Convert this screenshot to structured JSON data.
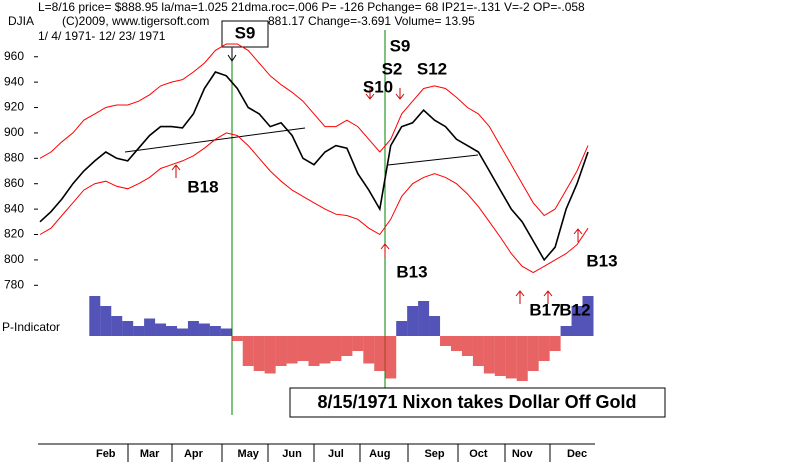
{
  "chart_data": [
    {
      "type": "line",
      "title": "DJIA",
      "header": [
        "L=8/16  price= $888.95  la/ma=1.025 21dma.roc=.006 P= -126 Pchange=  68 IP21=-.131 V=-2 OP=-.058",
        "(C)2009, www.tigersoft.com",
        "881.17  Change=-3.691 Volume= 13.95"
      ],
      "subtitle": "1/ 4/ 1971- 12/ 23/ 1971",
      "caption": "8/15/1971 Nixon takes Dollar Off Gold",
      "annotations": [
        "S9",
        "S9",
        "S2",
        "S12",
        "S10",
        "B18",
        "B13",
        "B13",
        "B17",
        "B12"
      ],
      "categories": [
        null,
        null,
        null,
        null,
        null,
        null,
        "Feb",
        null,
        null,
        null,
        "Mar",
        null,
        null,
        null,
        "Apr",
        null,
        null,
        null,
        null,
        "May",
        null,
        null,
        null,
        "Jun",
        null,
        null,
        null,
        "Jul",
        null,
        null,
        null,
        "Aug",
        null,
        null,
        null,
        null,
        "Sep",
        null,
        null,
        null,
        "Oct",
        null,
        null,
        null,
        "Nov",
        null,
        null,
        null,
        null,
        "Dec",
        null
      ],
      "ylim": [
        770,
        985
      ],
      "yticks": [
        960,
        940,
        920,
        900,
        880,
        860,
        840,
        820,
        800,
        780
      ],
      "series": [
        {
          "color": "#000000",
          "values": [
            830,
            838,
            848,
            860,
            870,
            878,
            885,
            880,
            878,
            888,
            898,
            905,
            905,
            904,
            915,
            935,
            948,
            945,
            935,
            920,
            915,
            905,
            908,
            898,
            880,
            875,
            885,
            890,
            888,
            868,
            855,
            840,
            890,
            905,
            908,
            918,
            910,
            905,
            895,
            890,
            885,
            870,
            855,
            840,
            830,
            815,
            800,
            810,
            840,
            860,
            885
          ]
        },
        {
          "color": "#ff0000",
          "values": [
            880,
            885,
            893,
            900,
            910,
            915,
            920,
            922,
            922,
            925,
            930,
            937,
            940,
            942,
            948,
            955,
            965,
            970,
            970,
            965,
            955,
            945,
            938,
            932,
            925,
            915,
            905,
            905,
            910,
            905,
            895,
            885,
            895,
            915,
            925,
            935,
            937,
            935,
            928,
            920,
            915,
            905,
            890,
            875,
            860,
            845,
            835,
            840,
            855,
            870,
            890
          ]
        },
        {
          "color": "#ff0000",
          "values": [
            820,
            825,
            835,
            845,
            855,
            860,
            862,
            858,
            856,
            860,
            865,
            872,
            875,
            878,
            882,
            888,
            895,
            900,
            898,
            890,
            880,
            870,
            862,
            855,
            850,
            845,
            840,
            836,
            835,
            832,
            825,
            820,
            832,
            850,
            860,
            865,
            868,
            865,
            860,
            852,
            842,
            830,
            818,
            805,
            795,
            790,
            795,
            800,
            805,
            812,
            825
          ]
        }
      ]
    },
    {
      "type": "bar",
      "title": "P-Indicator",
      "ylim": [
        -100,
        100
      ],
      "positive_color": "#1a1aa0",
      "negative_color": "#e03030",
      "values": [
        null,
        null,
        null,
        null,
        null,
        80,
        60,
        40,
        30,
        20,
        35,
        25,
        20,
        15,
        30,
        25,
        20,
        15,
        -10,
        -60,
        -70,
        -75,
        -60,
        -55,
        -50,
        -60,
        -55,
        -50,
        -40,
        -30,
        -55,
        -70,
        -85,
        30,
        60,
        70,
        40,
        -20,
        -30,
        -40,
        -60,
        -75,
        -80,
        -85,
        -90,
        -70,
        -50,
        -30,
        20,
        60,
        80
      ]
    }
  ]
}
